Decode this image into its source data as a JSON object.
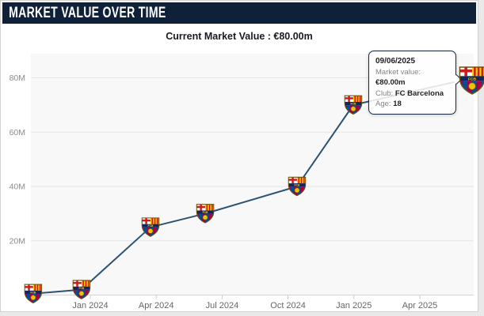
{
  "header": {
    "title": "MARKET VALUE OVER TIME"
  },
  "subtitle": {
    "text": "Current Market Value : €80.00m"
  },
  "tooltip": {
    "date": "09/06/2025",
    "rows": [
      {
        "label": "Market value: ",
        "value": "€80.00m"
      },
      {
        "label": "Club: ",
        "value": "FC Barcelona"
      },
      {
        "label": "Age: ",
        "value": "18"
      }
    ]
  },
  "chart_data": {
    "type": "line",
    "title": "Market value over time",
    "series": [
      {
        "name": "Market value (€m)",
        "points": [
          {
            "date_approx": "Oct 2023",
            "months_from_jan_2024": -2.6,
            "value_m_eur": 0.5
          },
          {
            "date_approx": "Dec 2023",
            "months_from_jan_2024": -0.4,
            "value_m_eur": 2
          },
          {
            "date_approx": "Mar 2024",
            "months_from_jan_2024": 2.74,
            "value_m_eur": 25
          },
          {
            "date_approx": "Jun 2024",
            "months_from_jan_2024": 5.23,
            "value_m_eur": 30
          },
          {
            "date_approx": "Oct 2024",
            "months_from_jan_2024": 9.41,
            "value_m_eur": 40
          },
          {
            "date_approx": "Dec 2024",
            "months_from_jan_2024": 11.97,
            "value_m_eur": 70
          },
          {
            "date_approx": "09/06/2025",
            "months_from_jan_2024": 17.42,
            "value_m_eur": 80
          }
        ]
      }
    ],
    "x_ticks": [
      {
        "months_from_jan_2024": 0,
        "label": "Jan 2024"
      },
      {
        "months_from_jan_2024": 3,
        "label": "Apr 2024"
      },
      {
        "months_from_jan_2024": 6,
        "label": "Jul 2024"
      },
      {
        "months_from_jan_2024": 9,
        "label": "Oct 2024"
      },
      {
        "months_from_jan_2024": 12,
        "label": "Jan 2025"
      },
      {
        "months_from_jan_2024": 15,
        "label": "Apr 2025"
      }
    ],
    "y_ticks": [
      {
        "value": 20,
        "label": "20M"
      },
      {
        "value": 40,
        "label": "40M"
      },
      {
        "value": 60,
        "label": "60M"
      },
      {
        "value": 80,
        "label": "80M"
      }
    ],
    "ylim": [
      0,
      89
    ],
    "grid": true,
    "legend_position": "none",
    "marker": "fc-barcelona-crest",
    "currency": "EUR"
  },
  "colors": {
    "header_bg": "#0f2138",
    "line": "#2d5373",
    "plot_bg": "#f8f8f8",
    "grid": "#e5e5e5",
    "axis": "#ccd3d9",
    "tick": "#c9ced3",
    "x_label": "#666666",
    "y_label": "#8b8b8b",
    "tooltip_border": "#16263f"
  }
}
